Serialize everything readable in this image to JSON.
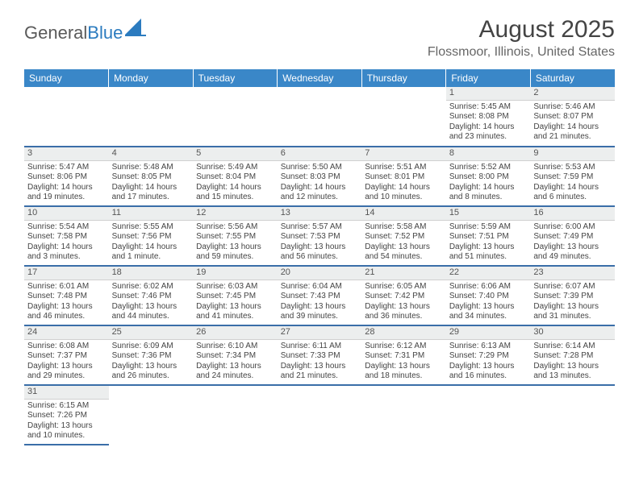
{
  "logo": {
    "text1": "General",
    "text2": "Blue",
    "accent_color": "#2b7bbf"
  },
  "title": "August 2025",
  "location": "Flossmoor, Illinois, United States",
  "colors": {
    "header_bg": "#3a87c8",
    "header_fg": "#ffffff",
    "row_divider": "#3a6ea8",
    "daynum_bg": "#eceeee",
    "text": "#444"
  },
  "weekdays": [
    "Sunday",
    "Monday",
    "Tuesday",
    "Wednesday",
    "Thursday",
    "Friday",
    "Saturday"
  ],
  "weeks": [
    [
      null,
      null,
      null,
      null,
      null,
      {
        "n": "1",
        "sr": "Sunrise: 5:45 AM",
        "ss": "Sunset: 8:08 PM",
        "dl": "Daylight: 14 hours and 23 minutes."
      },
      {
        "n": "2",
        "sr": "Sunrise: 5:46 AM",
        "ss": "Sunset: 8:07 PM",
        "dl": "Daylight: 14 hours and 21 minutes."
      }
    ],
    [
      {
        "n": "3",
        "sr": "Sunrise: 5:47 AM",
        "ss": "Sunset: 8:06 PM",
        "dl": "Daylight: 14 hours and 19 minutes."
      },
      {
        "n": "4",
        "sr": "Sunrise: 5:48 AM",
        "ss": "Sunset: 8:05 PM",
        "dl": "Daylight: 14 hours and 17 minutes."
      },
      {
        "n": "5",
        "sr": "Sunrise: 5:49 AM",
        "ss": "Sunset: 8:04 PM",
        "dl": "Daylight: 14 hours and 15 minutes."
      },
      {
        "n": "6",
        "sr": "Sunrise: 5:50 AM",
        "ss": "Sunset: 8:03 PM",
        "dl": "Daylight: 14 hours and 12 minutes."
      },
      {
        "n": "7",
        "sr": "Sunrise: 5:51 AM",
        "ss": "Sunset: 8:01 PM",
        "dl": "Daylight: 14 hours and 10 minutes."
      },
      {
        "n": "8",
        "sr": "Sunrise: 5:52 AM",
        "ss": "Sunset: 8:00 PM",
        "dl": "Daylight: 14 hours and 8 minutes."
      },
      {
        "n": "9",
        "sr": "Sunrise: 5:53 AM",
        "ss": "Sunset: 7:59 PM",
        "dl": "Daylight: 14 hours and 6 minutes."
      }
    ],
    [
      {
        "n": "10",
        "sr": "Sunrise: 5:54 AM",
        "ss": "Sunset: 7:58 PM",
        "dl": "Daylight: 14 hours and 3 minutes."
      },
      {
        "n": "11",
        "sr": "Sunrise: 5:55 AM",
        "ss": "Sunset: 7:56 PM",
        "dl": "Daylight: 14 hours and 1 minute."
      },
      {
        "n": "12",
        "sr": "Sunrise: 5:56 AM",
        "ss": "Sunset: 7:55 PM",
        "dl": "Daylight: 13 hours and 59 minutes."
      },
      {
        "n": "13",
        "sr": "Sunrise: 5:57 AM",
        "ss": "Sunset: 7:53 PM",
        "dl": "Daylight: 13 hours and 56 minutes."
      },
      {
        "n": "14",
        "sr": "Sunrise: 5:58 AM",
        "ss": "Sunset: 7:52 PM",
        "dl": "Daylight: 13 hours and 54 minutes."
      },
      {
        "n": "15",
        "sr": "Sunrise: 5:59 AM",
        "ss": "Sunset: 7:51 PM",
        "dl": "Daylight: 13 hours and 51 minutes."
      },
      {
        "n": "16",
        "sr": "Sunrise: 6:00 AM",
        "ss": "Sunset: 7:49 PM",
        "dl": "Daylight: 13 hours and 49 minutes."
      }
    ],
    [
      {
        "n": "17",
        "sr": "Sunrise: 6:01 AM",
        "ss": "Sunset: 7:48 PM",
        "dl": "Daylight: 13 hours and 46 minutes."
      },
      {
        "n": "18",
        "sr": "Sunrise: 6:02 AM",
        "ss": "Sunset: 7:46 PM",
        "dl": "Daylight: 13 hours and 44 minutes."
      },
      {
        "n": "19",
        "sr": "Sunrise: 6:03 AM",
        "ss": "Sunset: 7:45 PM",
        "dl": "Daylight: 13 hours and 41 minutes."
      },
      {
        "n": "20",
        "sr": "Sunrise: 6:04 AM",
        "ss": "Sunset: 7:43 PM",
        "dl": "Daylight: 13 hours and 39 minutes."
      },
      {
        "n": "21",
        "sr": "Sunrise: 6:05 AM",
        "ss": "Sunset: 7:42 PM",
        "dl": "Daylight: 13 hours and 36 minutes."
      },
      {
        "n": "22",
        "sr": "Sunrise: 6:06 AM",
        "ss": "Sunset: 7:40 PM",
        "dl": "Daylight: 13 hours and 34 minutes."
      },
      {
        "n": "23",
        "sr": "Sunrise: 6:07 AM",
        "ss": "Sunset: 7:39 PM",
        "dl": "Daylight: 13 hours and 31 minutes."
      }
    ],
    [
      {
        "n": "24",
        "sr": "Sunrise: 6:08 AM",
        "ss": "Sunset: 7:37 PM",
        "dl": "Daylight: 13 hours and 29 minutes."
      },
      {
        "n": "25",
        "sr": "Sunrise: 6:09 AM",
        "ss": "Sunset: 7:36 PM",
        "dl": "Daylight: 13 hours and 26 minutes."
      },
      {
        "n": "26",
        "sr": "Sunrise: 6:10 AM",
        "ss": "Sunset: 7:34 PM",
        "dl": "Daylight: 13 hours and 24 minutes."
      },
      {
        "n": "27",
        "sr": "Sunrise: 6:11 AM",
        "ss": "Sunset: 7:33 PM",
        "dl": "Daylight: 13 hours and 21 minutes."
      },
      {
        "n": "28",
        "sr": "Sunrise: 6:12 AM",
        "ss": "Sunset: 7:31 PM",
        "dl": "Daylight: 13 hours and 18 minutes."
      },
      {
        "n": "29",
        "sr": "Sunrise: 6:13 AM",
        "ss": "Sunset: 7:29 PM",
        "dl": "Daylight: 13 hours and 16 minutes."
      },
      {
        "n": "30",
        "sr": "Sunrise: 6:14 AM",
        "ss": "Sunset: 7:28 PM",
        "dl": "Daylight: 13 hours and 13 minutes."
      }
    ],
    [
      {
        "n": "31",
        "sr": "Sunrise: 6:15 AM",
        "ss": "Sunset: 7:26 PM",
        "dl": "Daylight: 13 hours and 10 minutes."
      },
      null,
      null,
      null,
      null,
      null,
      null
    ]
  ]
}
